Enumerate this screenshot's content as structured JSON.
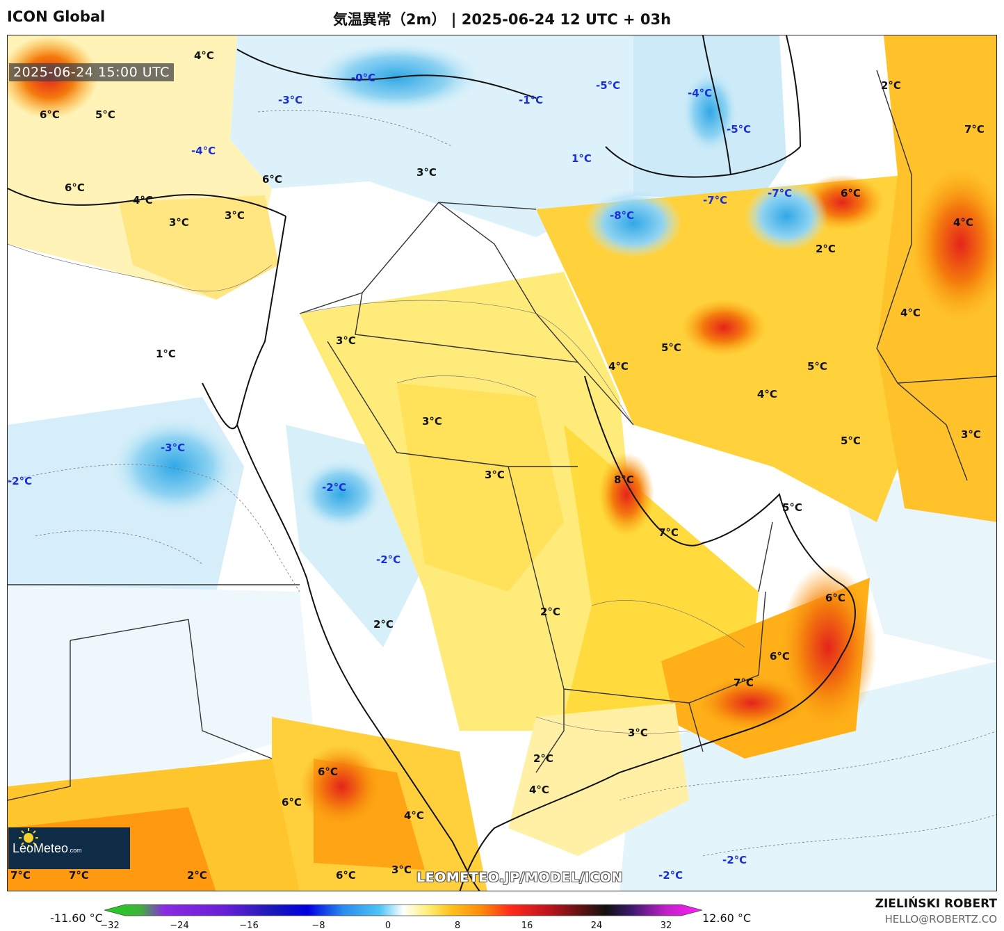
{
  "header": {
    "model": "ICON Global",
    "title": "気温異常（2m） | 2025-06-24 12 UTC + 03h"
  },
  "map": {
    "timestamp": "2025-06-24 15:00 UTC",
    "watermark": "LEOMETEO.JP/MODEL/ICON",
    "logo_text": "LeoMeteo",
    "logo_suffix": ".com",
    "labels": [
      {
        "t": "4°C",
        "k": "warm"
      },
      {
        "t": "6°C",
        "k": "warm"
      },
      {
        "t": "5°C",
        "k": "warm"
      },
      {
        "t": "-3°C",
        "k": "cold"
      },
      {
        "t": "-0°C",
        "k": "cold"
      },
      {
        "t": "-1°C",
        "k": "cold"
      },
      {
        "t": "-5°C",
        "k": "cold"
      },
      {
        "t": "-4°C",
        "k": "cold"
      },
      {
        "t": "-5°C",
        "k": "cold"
      },
      {
        "t": "2°C",
        "k": "warm"
      },
      {
        "t": "7°C",
        "k": "warm"
      },
      {
        "t": "-4°C",
        "k": "cold"
      },
      {
        "t": "1°C",
        "k": "cold"
      },
      {
        "t": "6°C",
        "k": "warm"
      },
      {
        "t": "3°C",
        "k": "warm"
      },
      {
        "t": "6°C",
        "k": "warm"
      },
      {
        "t": "-7°C",
        "k": "cold"
      },
      {
        "t": "-7°C",
        "k": "cold"
      },
      {
        "t": "6°C",
        "k": "warm"
      },
      {
        "t": "4°C",
        "k": "warm"
      },
      {
        "t": "3°C",
        "k": "warm"
      },
      {
        "t": "3°C",
        "k": "warm"
      },
      {
        "t": "-8°C",
        "k": "cold"
      },
      {
        "t": "4°C",
        "k": "warm"
      },
      {
        "t": "2°C",
        "k": "warm"
      },
      {
        "t": "4°C",
        "k": "warm"
      },
      {
        "t": "3°C",
        "k": "warm"
      },
      {
        "t": "5°C",
        "k": "warm"
      },
      {
        "t": "1°C",
        "k": "warm"
      },
      {
        "t": "4°C",
        "k": "warm"
      },
      {
        "t": "5°C",
        "k": "warm"
      },
      {
        "t": "4°C",
        "k": "warm"
      },
      {
        "t": "3°C",
        "k": "warm"
      },
      {
        "t": "-3°C",
        "k": "cold"
      },
      {
        "t": "5°C",
        "k": "warm"
      },
      {
        "t": "3°C",
        "k": "warm"
      },
      {
        "t": "-2°C",
        "k": "cold"
      },
      {
        "t": "3°C",
        "k": "warm"
      },
      {
        "t": "8°C",
        "k": "warm"
      },
      {
        "t": "-2°C",
        "k": "cold"
      },
      {
        "t": "5°C",
        "k": "warm"
      },
      {
        "t": "7°C",
        "k": "warm"
      },
      {
        "t": "-2°C",
        "k": "cold"
      },
      {
        "t": "6°C",
        "k": "warm"
      },
      {
        "t": "2°C",
        "k": "warm"
      },
      {
        "t": "2°C",
        "k": "warm"
      },
      {
        "t": "6°C",
        "k": "warm"
      },
      {
        "t": "7°C",
        "k": "warm"
      },
      {
        "t": "3°C",
        "k": "warm"
      },
      {
        "t": "2°C",
        "k": "warm"
      },
      {
        "t": "6°C",
        "k": "warm"
      },
      {
        "t": "4°C",
        "k": "warm"
      },
      {
        "t": "6°C",
        "k": "warm"
      },
      {
        "t": "4°C",
        "k": "warm"
      },
      {
        "t": "7°C",
        "k": "warm"
      },
      {
        "t": "7°C",
        "k": "warm"
      },
      {
        "t": "2°C",
        "k": "warm"
      },
      {
        "t": "6°C",
        "k": "warm"
      },
      {
        "t": "3°C",
        "k": "warm"
      },
      {
        "t": "-2°C",
        "k": "cold"
      },
      {
        "t": "-2°C",
        "k": "cold"
      }
    ]
  },
  "colorbar": {
    "min_label": "-11.60 °C",
    "max_label": "12.60 °C",
    "ticks": [
      "−32",
      "−24",
      "−16",
      "−8",
      "0",
      "8",
      "16",
      "24",
      "32"
    ]
  },
  "credit": {
    "name": "ZIELIŃSKI ROBERT",
    "email": "HELLO@ROBERTZ.CO"
  }
}
